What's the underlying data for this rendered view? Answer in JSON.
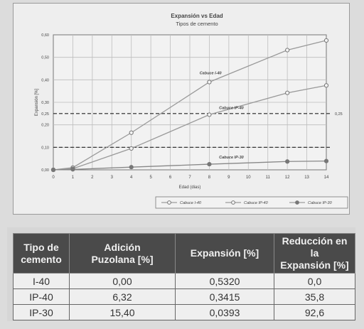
{
  "chart_data": {
    "type": "line",
    "title": "Expansión  vs  Edad",
    "subtitle": "Tipos de cemento",
    "xlabel": "Edad  (dias)",
    "ylabel": "Expansión  [%]",
    "xlim": [
      0,
      14
    ],
    "ylim": [
      0,
      0.6
    ],
    "x_ticks": [
      "0",
      "1",
      "2",
      "3",
      "4",
      "5",
      "6",
      "7",
      "8",
      "9",
      "10",
      "11",
      "12",
      "13",
      "14"
    ],
    "y_ticks": [
      "0,00",
      "0,10",
      "0,20",
      "0,25",
      "0,30",
      "0,40",
      "0,50",
      "0,60"
    ],
    "grid": true,
    "reference_lines": [
      {
        "y": 0.25,
        "label": "0,25"
      },
      {
        "y": 0.1,
        "label": ""
      }
    ],
    "series": [
      {
        "name": "Cabuce I-40",
        "marker": "circle-open",
        "color": "#999999",
        "points": [
          [
            0,
            0.0
          ],
          [
            1,
            0.01
          ],
          [
            4,
            0.165
          ],
          [
            8,
            0.39
          ],
          [
            12,
            0.532
          ],
          [
            14,
            0.575
          ]
        ]
      },
      {
        "name": "Cabuce IP-40",
        "marker": "circle-open",
        "color": "#999999",
        "points": [
          [
            0,
            0.0
          ],
          [
            1,
            0.005
          ],
          [
            4,
            0.095
          ],
          [
            8,
            0.245
          ],
          [
            12,
            0.342
          ],
          [
            14,
            0.375
          ]
        ]
      },
      {
        "name": "Cabuce IP-30",
        "marker": "circle-filled",
        "color": "#888888",
        "points": [
          [
            0,
            0.0
          ],
          [
            1,
            0.002
          ],
          [
            4,
            0.012
          ],
          [
            8,
            0.025
          ],
          [
            12,
            0.037
          ],
          [
            14,
            0.039
          ]
        ]
      }
    ],
    "annotations": [
      {
        "text": "Cabuce I-40",
        "x": 7.5,
        "y": 0.425
      },
      {
        "text": "Cabuce IP-40",
        "x": 8.5,
        "y": 0.27
      },
      {
        "text": "Cabuce IP-30",
        "x": 8.5,
        "y": 0.05
      }
    ],
    "legend_position": "bottom-right",
    "legend": [
      "Cabuce I-40",
      "Cabuce IP-40",
      "Cabuce IP-30"
    ]
  },
  "table": {
    "headers": [
      "Tipo de\ncemento",
      "Adición\nPuzolana [%]",
      "Expansión   [%]",
      "Reducción en la\nExpansión [%]"
    ],
    "rows": [
      [
        "I-40",
        "0,00",
        "0,5320",
        "0,0"
      ],
      [
        "IP-40",
        "6,32",
        "0,3415",
        "35,8"
      ],
      [
        "IP-30",
        "15,40",
        "0,0393",
        "92,6"
      ]
    ]
  }
}
